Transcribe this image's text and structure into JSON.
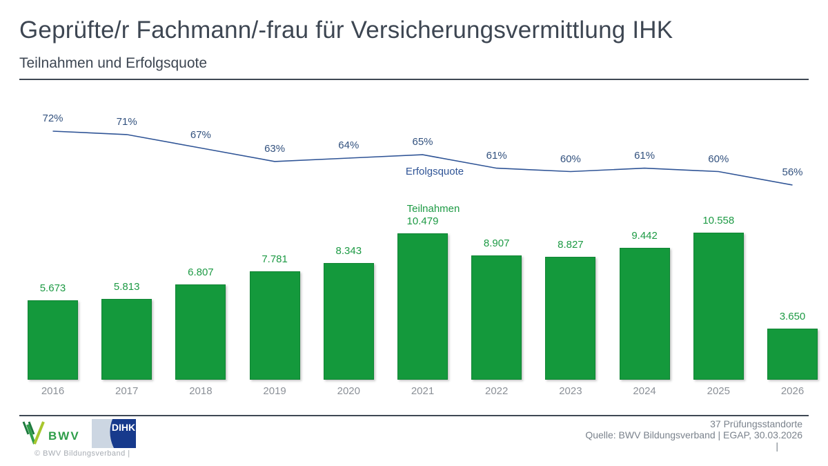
{
  "header": {
    "title": "Geprüfte/r Fachmann/-frau für Versicherungsvermittlung IHK",
    "subtitle": "Teilnahmen und Erfolgsquote"
  },
  "chart_data": {
    "type": "bar",
    "categories": [
      "2016",
      "2017",
      "2018",
      "2019",
      "2020",
      "2021",
      "2022",
      "2023",
      "2024",
      "2025",
      "2026"
    ],
    "series": [
      {
        "name": "Teilnahmen",
        "type": "bar",
        "color": "#14993c",
        "values": [
          5673,
          5813,
          6807,
          7781,
          8343,
          10479,
          8907,
          8827,
          9442,
          10558,
          3650
        ],
        "labels": [
          "5.673",
          "5.813",
          "6.807",
          "7.781",
          "8.343",
          "10.479",
          "8.907",
          "8.827",
          "9.442",
          "10.558",
          "3.650"
        ]
      },
      {
        "name": "Erfolgsquote",
        "type": "line",
        "color": "#2f5496",
        "values": [
          72,
          71,
          67,
          63,
          64,
          65,
          61,
          60,
          61,
          60,
          56
        ],
        "labels": [
          "72%",
          "71%",
          "67%",
          "63%",
          "64%",
          "65%",
          "61%",
          "60%",
          "61%",
          "60%",
          "56%"
        ]
      }
    ],
    "xlabel": "",
    "ylabel": "",
    "grid": false,
    "legend_position": "inline-annotations",
    "bar_value_labels_color": "#1d9a44",
    "pct_value_labels_color": "#32517e"
  },
  "footer": {
    "bwv_label": "BWV",
    "dihk_label": "DIHK",
    "copyright": "©   BWV Bildungsverband   |",
    "right_line1": "37 Prüfungsstandorte",
    "right_line2": "Quelle: BWV Bildungsverband | EGAP, 30.03.2026",
    "right_line3": "|"
  },
  "colors": {
    "bar_green": "#14993c",
    "line_blue": "#2f5496",
    "text_dark": "#3d4652",
    "text_gray": "#8b9097",
    "bwv_green": "#2f9e4a",
    "dihk_blue": "#173a8c",
    "dihk_light": "#ccd6e2"
  }
}
